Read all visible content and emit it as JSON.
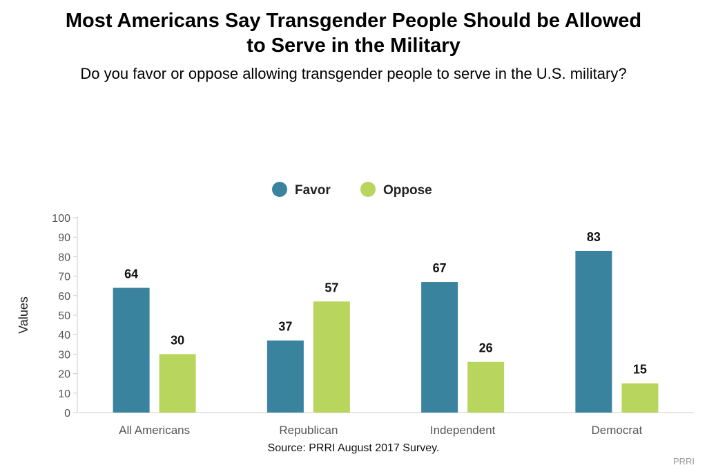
{
  "title_lines": [
    "Most Americans Say Transgender People Should be Allowed",
    "to Serve in the Military"
  ],
  "subtitle": "Do you favor or oppose allowing transgender people to serve in the U.S. military?",
  "source": "Source: PRRI August 2017 Survey.",
  "brand": "PRRI",
  "colors": {
    "favor": "#3a839f",
    "oppose": "#b8d55e",
    "axis": "#cccccc",
    "tick_text": "#555555"
  },
  "chart_data": {
    "type": "bar",
    "categories": [
      "All Americans",
      "Republican",
      "Independent",
      "Democrat"
    ],
    "series": [
      {
        "name": "Favor",
        "values": [
          64,
          37,
          67,
          83
        ]
      },
      {
        "name": "Oppose",
        "values": [
          30,
          57,
          26,
          15
        ]
      }
    ],
    "ylabel": "Values",
    "ylim": [
      0,
      100
    ],
    "yticks": [
      0,
      10,
      20,
      30,
      40,
      50,
      60,
      70,
      80,
      90,
      100
    ],
    "legend": "top-center",
    "grid": false
  }
}
